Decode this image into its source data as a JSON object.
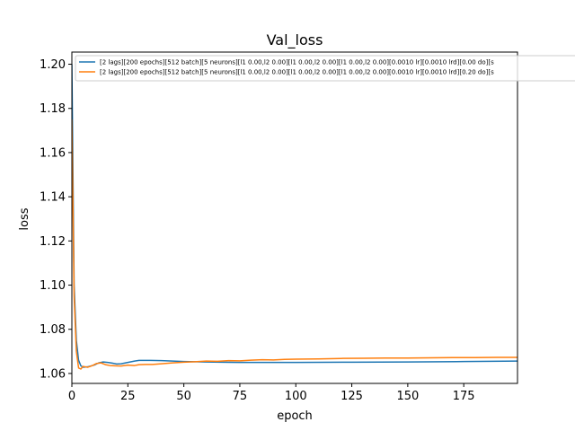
{
  "chart_data": {
    "type": "line",
    "title": "Val_loss",
    "xlabel": "epoch",
    "ylabel": "loss",
    "xlim": [
      0,
      199
    ],
    "ylim": [
      1.0555,
      1.2055
    ],
    "xticks": [
      0,
      25,
      50,
      75,
      100,
      125,
      150,
      175
    ],
    "yticks": [
      1.06,
      1.08,
      1.1,
      1.12,
      1.14,
      1.16,
      1.18,
      1.2
    ],
    "grid": false,
    "legend_position": "top-right",
    "series": [
      {
        "name": "[2 lags][200 epochs][512 batch][5 neurons][l1 0.00,l2 0.00][l1 0.00,l2 0.00][l1 0.00,l2 0.00][0.0010 lr][0.0010 lrd][0.00 do][s",
        "color": "#1f77b4",
        "points": [
          [
            0,
            1.2
          ],
          [
            1,
            1.1
          ],
          [
            2,
            1.075
          ],
          [
            3,
            1.066
          ],
          [
            4,
            1.0635
          ],
          [
            5,
            1.0628
          ],
          [
            7,
            1.063
          ],
          [
            10,
            1.0638
          ],
          [
            12,
            1.0648
          ],
          [
            14,
            1.0652
          ],
          [
            16,
            1.065
          ],
          [
            18,
            1.0647
          ],
          [
            20,
            1.0643
          ],
          [
            22,
            1.0644
          ],
          [
            25,
            1.065
          ],
          [
            28,
            1.0656
          ],
          [
            30,
            1.0659
          ],
          [
            35,
            1.0659
          ],
          [
            40,
            1.0658
          ],
          [
            45,
            1.0656
          ],
          [
            50,
            1.0654
          ],
          [
            60,
            1.0652
          ],
          [
            75,
            1.065
          ],
          [
            100,
            1.065
          ],
          [
            125,
            1.0651
          ],
          [
            150,
            1.0652
          ],
          [
            175,
            1.0654
          ],
          [
            199,
            1.0656
          ]
        ]
      },
      {
        "name": "[2 lags][200 epochs][512 batch][5 neurons][l1 0.00,l2 0.00][l1 0.00,l2 0.00][l1 0.00,l2 0.00][0.0010 lr][0.0010 lrd][0.20 do][s",
        "color": "#ff7f0e",
        "points": [
          [
            0,
            1.175
          ],
          [
            1,
            1.095
          ],
          [
            2,
            1.07
          ],
          [
            3,
            1.0625
          ],
          [
            4,
            1.062
          ],
          [
            5,
            1.0632
          ],
          [
            7,
            1.0628
          ],
          [
            9,
            1.0635
          ],
          [
            11,
            1.0645
          ],
          [
            13,
            1.0648
          ],
          [
            15,
            1.064
          ],
          [
            17,
            1.0636
          ],
          [
            19,
            1.0635
          ],
          [
            22,
            1.0634
          ],
          [
            25,
            1.0638
          ],
          [
            28,
            1.0636
          ],
          [
            30,
            1.064
          ],
          [
            33,
            1.0641
          ],
          [
            36,
            1.0641
          ],
          [
            40,
            1.0644
          ],
          [
            45,
            1.0648
          ],
          [
            50,
            1.0651
          ],
          [
            55,
            1.0653
          ],
          [
            60,
            1.0656
          ],
          [
            65,
            1.0655
          ],
          [
            70,
            1.0658
          ],
          [
            75,
            1.0657
          ],
          [
            80,
            1.066
          ],
          [
            85,
            1.0662
          ],
          [
            90,
            1.0661
          ],
          [
            95,
            1.0664
          ],
          [
            100,
            1.0665
          ],
          [
            110,
            1.0666
          ],
          [
            120,
            1.0668
          ],
          [
            130,
            1.0669
          ],
          [
            140,
            1.067
          ],
          [
            150,
            1.067
          ],
          [
            160,
            1.0671
          ],
          [
            170,
            1.0672
          ],
          [
            180,
            1.0672
          ],
          [
            190,
            1.0673
          ],
          [
            199,
            1.0673
          ]
        ]
      }
    ]
  }
}
